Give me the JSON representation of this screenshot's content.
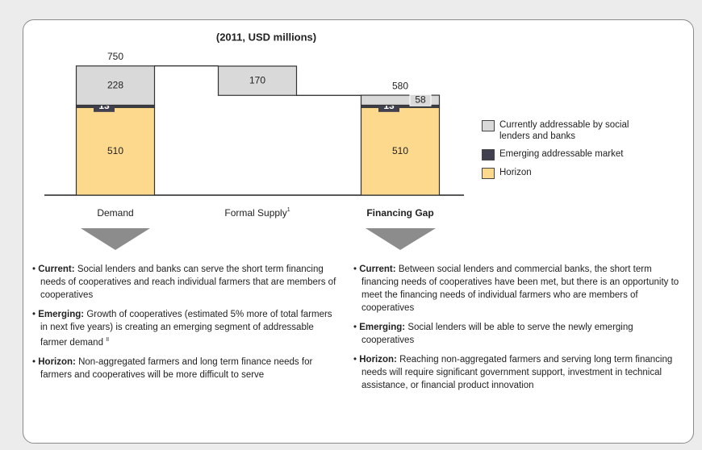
{
  "chart_data": {
    "type": "waterfall",
    "title": "(2011, USD millions)",
    "categories": [
      "Demand",
      "Formal Supply",
      "Financing Gap"
    ],
    "category_notes": [
      null,
      "1",
      null
    ],
    "totals": [
      750,
      null,
      580
    ],
    "series": [
      {
        "name": "Horizon",
        "color": "#fcd98c",
        "values": [
          510,
          null,
          510
        ]
      },
      {
        "name": "Emerging addressable market",
        "color": "#40404e",
        "values": [
          13,
          null,
          13
        ]
      },
      {
        "name": "Currently addressable by social lenders and banks",
        "color": "#d9d9d9",
        "values": [
          228,
          170,
          58
        ]
      }
    ]
  },
  "notes_left": [
    {
      "label": "Current:",
      "text": "Social lenders and banks can serve the short term financing needs of cooperatives and reach individual farmers that are members of cooperatives"
    },
    {
      "label": "Emerging:",
      "text": "Growth of cooperatives (estimated 5% more of total farmers in next five years) is creating an emerging segment of addressable farmer demand",
      "ref": "II"
    },
    {
      "label": "Horizon:",
      "text": "Non-aggregated farmers and long term finance needs for farmers and cooperatives will be more difficult to serve"
    }
  ],
  "notes_right": [
    {
      "label": "Current:",
      "text": "Between social lenders and commercial banks, the short term financing needs of cooperatives have been met, but there is an opportunity to meet the financing needs of individual farmers who are members of cooperatives"
    },
    {
      "label": "Emerging:",
      "text": "Social lenders will be able to serve the newly emerging cooperatives"
    },
    {
      "label": "Horizon:",
      "text": "Reaching non-aggregated farmers and serving long term financing needs will require significant government support, investment in technical assistance, or financial product innovation"
    }
  ]
}
